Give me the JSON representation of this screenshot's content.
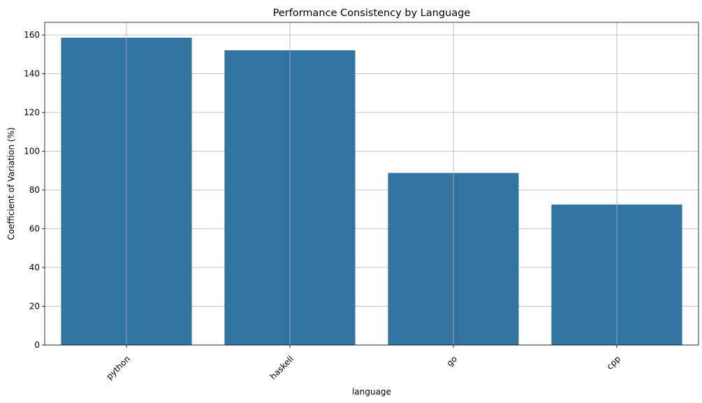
{
  "chart_data": {
    "type": "bar",
    "title": "Performance Consistency by Language",
    "xlabel": "language",
    "ylabel": "Coefficient of Variation (%)",
    "categories": [
      "python",
      "haskell",
      "go",
      "cpp"
    ],
    "values": [
      158.6,
      152.1,
      88.8,
      72.5
    ],
    "ylim": [
      0,
      166.5
    ],
    "yticks": [
      0,
      20,
      40,
      60,
      80,
      100,
      120,
      140,
      160
    ],
    "ytick_labels": [
      "0",
      "20",
      "40",
      "60",
      "80",
      "100",
      "120",
      "140",
      "160"
    ],
    "grid": true,
    "bar_color": "#3274a1",
    "grid_color": "#b0b0b0",
    "x_tick_rotation": 45,
    "legend": "none"
  }
}
